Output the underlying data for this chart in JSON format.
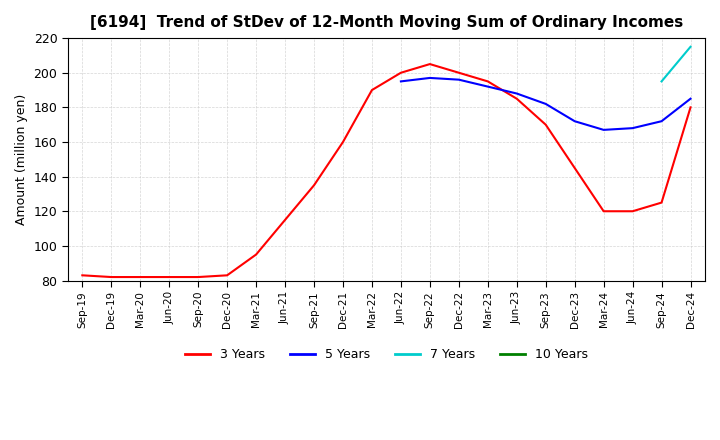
{
  "title": "[6194]  Trend of StDev of 12-Month Moving Sum of Ordinary Incomes",
  "ylabel": "Amount (million yen)",
  "ylim": [
    80,
    220
  ],
  "yticks": [
    80,
    100,
    120,
    140,
    160,
    180,
    200,
    220
  ],
  "line_colors": {
    "3y": "#ff0000",
    "5y": "#0000ff",
    "7y": "#00cccc",
    "10y": "#008000"
  },
  "legend": [
    "3 Years",
    "5 Years",
    "7 Years",
    "10 Years"
  ],
  "x_labels": [
    "Sep-19",
    "Dec-19",
    "Mar-20",
    "Jun-20",
    "Sep-20",
    "Dec-20",
    "Mar-21",
    "Jun-21",
    "Sep-21",
    "Dec-21",
    "Mar-22",
    "Jun-22",
    "Sep-22",
    "Dec-22",
    "Mar-23",
    "Jun-23",
    "Sep-23",
    "Dec-23",
    "Mar-24",
    "Jun-24",
    "Sep-24",
    "Dec-24"
  ],
  "data_3y": [
    83,
    82,
    82,
    82,
    82,
    83,
    95,
    115,
    135,
    160,
    190,
    200,
    205,
    200,
    195,
    185,
    170,
    145,
    120,
    120,
    125,
    180
  ],
  "data_5y": [
    null,
    null,
    null,
    null,
    null,
    null,
    null,
    null,
    null,
    null,
    null,
    195,
    197,
    196,
    192,
    188,
    182,
    172,
    167,
    168,
    172,
    185
  ],
  "data_7y": [
    null,
    null,
    null,
    null,
    null,
    null,
    null,
    null,
    null,
    null,
    null,
    null,
    null,
    null,
    null,
    null,
    null,
    null,
    null,
    null,
    195,
    215
  ],
  "data_10y": [
    null,
    null,
    null,
    null,
    null,
    null,
    null,
    null,
    null,
    null,
    null,
    null,
    null,
    null,
    null,
    null,
    null,
    null,
    null,
    null,
    null,
    null
  ]
}
